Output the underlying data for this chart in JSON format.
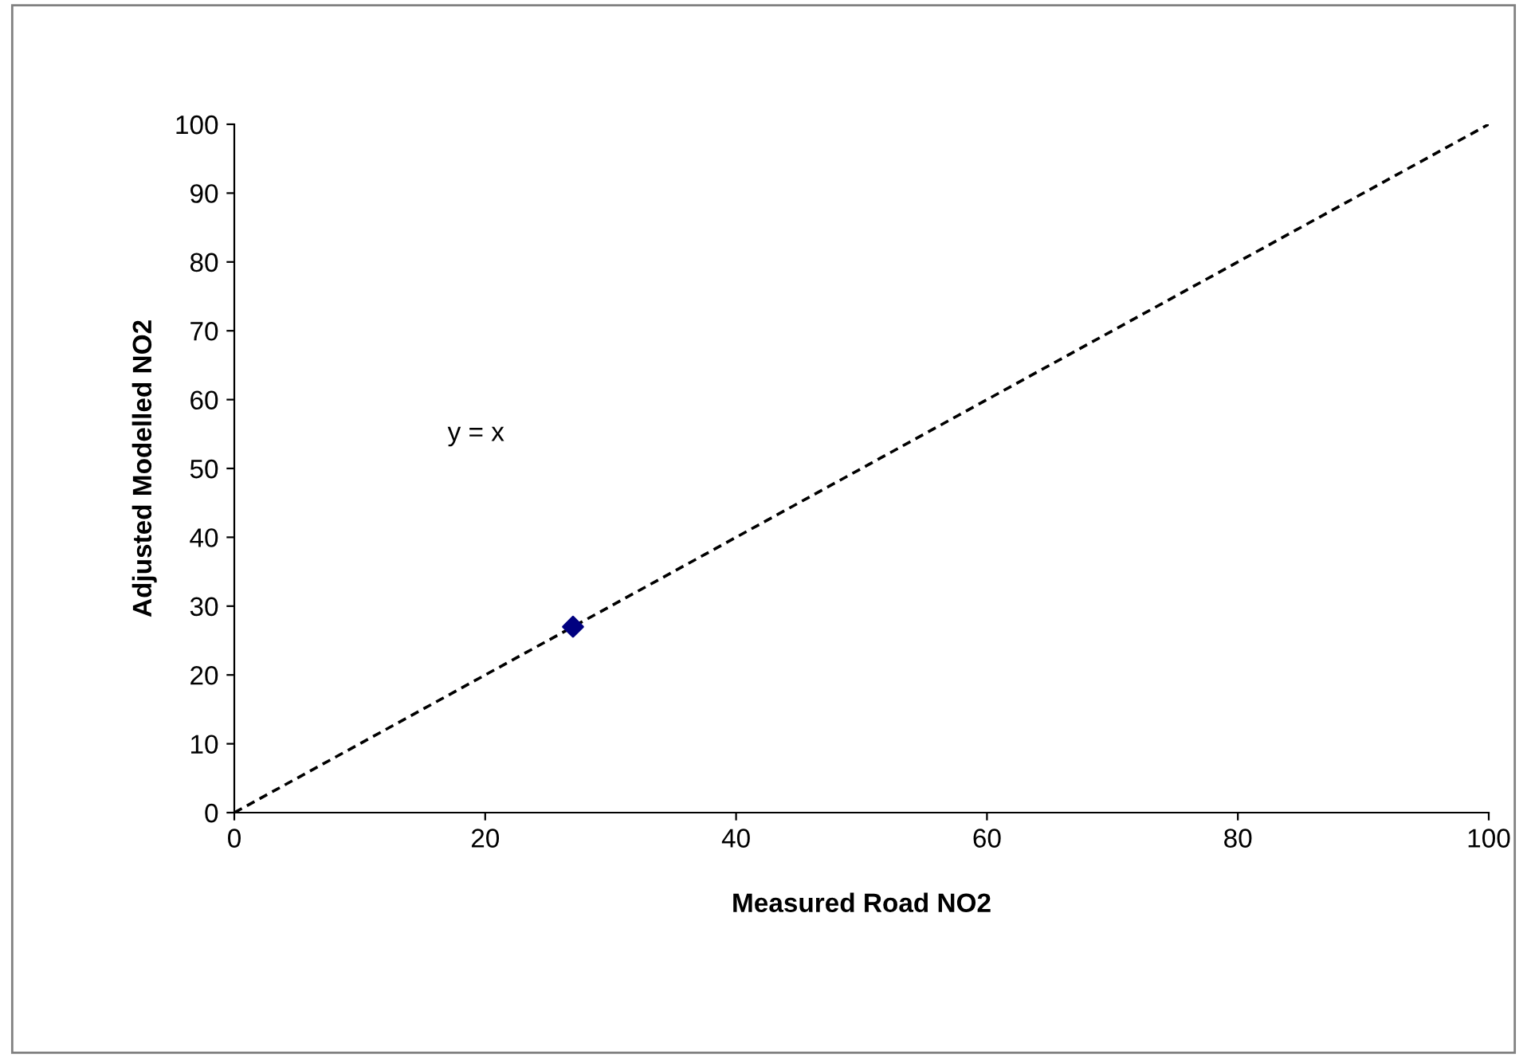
{
  "chart_data": {
    "type": "scatter",
    "xlabel": "Measured Road NO2",
    "ylabel": "Adjusted Modelled NO2",
    "series": [
      {
        "color": "#000080",
        "marker": "diamond",
        "x": [
          27
        ],
        "values": [
          27
        ]
      },
      {
        "type": "line",
        "color": "#000000",
        "line_style": "dashed",
        "marker": "none",
        "x": [
          0,
          100
        ],
        "values": [
          0,
          100
        ]
      }
    ],
    "annotations": [
      "y = x"
    ],
    "xlim": [
      0,
      100
    ],
    "xticks": [
      0,
      20,
      40,
      60,
      80,
      100
    ],
    "ylim": [
      0,
      100
    ],
    "yticks": [
      0,
      10,
      20,
      30,
      40,
      50,
      60,
      70,
      80,
      90,
      100
    ],
    "grid": false,
    "legend": false
  }
}
